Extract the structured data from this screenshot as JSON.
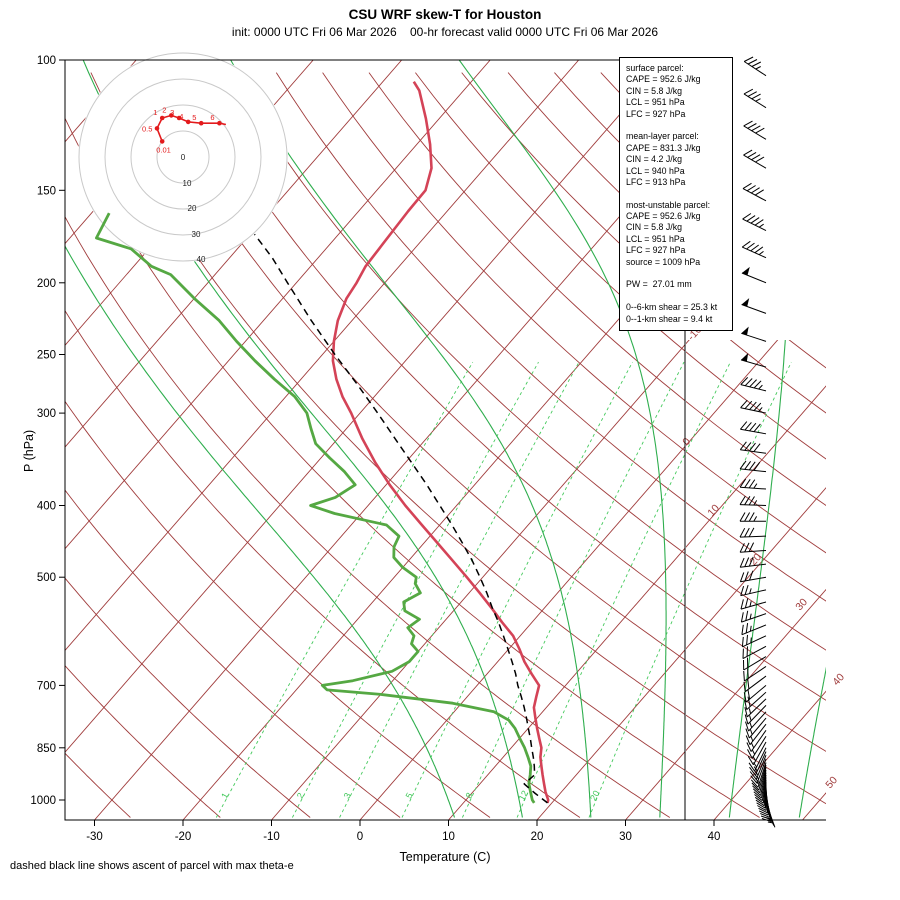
{
  "header": {
    "title": "CSU WRF skew-T for Houston",
    "subtitle": "init: 0000 UTC Fri 06 Mar 2026    00-hr forecast valid 0000 UTC Fri 06 Mar 2026"
  },
  "footnote": "dashed black line shows ascent of parcel with max theta-e",
  "axes": {
    "x_label": "Temperature (C)",
    "y_label": "P (hPa)",
    "x_ticks": [
      -30,
      -20,
      -10,
      0,
      10,
      20,
      30,
      40
    ],
    "y_ticks": [
      100,
      150,
      200,
      250,
      300,
      400,
      500,
      700,
      850,
      1000
    ]
  },
  "colors": {
    "isotherm": "#a03c3c",
    "dry_adiabat": "#a03c3c",
    "moist_adiabat": "#2fae4e",
    "mixing_ratio": "#44c95c",
    "temperature": "#d44357",
    "dewpoint": "#55a843",
    "parcel": "#000000",
    "barb": "#000000",
    "hodo_trace": "#e31a1c",
    "hodo_ring": "#c9c9c9"
  },
  "isotherm_labels": [
    "-10",
    "0",
    "10",
    "20",
    "30",
    "40",
    "50"
  ],
  "legend": {
    "lines": [
      "surface parcel:",
      "CAPE = 952.6 J/kg",
      "CIN = 5.8 J/kg",
      "LCL = 951 hPa",
      "LFC = 927 hPa",
      "",
      "mean-layer parcel:",
      "CAPE = 831.3 J/kg",
      "CIN = 4.2 J/kg",
      "LCL = 940 hPa",
      "LFC = 913 hPa",
      "",
      "most-unstable parcel:",
      "CAPE = 952.6 J/kg",
      "CIN = 5.8 J/kg",
      "LCL = 951 hPa",
      "LFC = 927 hPa",
      "source = 1009 hPa",
      "",
      "PW =  27.01 mm",
      "",
      "0--6-km shear = 25.3 kt",
      "0--1-km shear = 9.4 kt"
    ]
  },
  "hodograph": {
    "units": "kt",
    "ring_labels": [
      "0",
      "10",
      "20",
      "30",
      "40"
    ],
    "points": [
      {
        "label": "0.01",
        "u": -8,
        "v": 6
      },
      {
        "label": "0.5",
        "u": -10,
        "v": 11
      },
      {
        "label": "1",
        "u": -8,
        "v": 15
      },
      {
        "label": "2",
        "u": -4.5,
        "v": 16
      },
      {
        "label": "3",
        "u": -1.5,
        "v": 15
      },
      {
        "label": "4",
        "u": 2,
        "v": 13.5
      },
      {
        "label": "5",
        "u": 7,
        "v": 13
      },
      {
        "label": "6",
        "u": 14,
        "v": 13
      },
      {
        "label": "",
        "u": 16.5,
        "v": 12.5
      }
    ]
  },
  "chart_data": {
    "type": "line",
    "variant": "skew-T log-p sounding",
    "pressure_range": [
      100,
      1065
    ],
    "temperature_axis_range": [
      -30,
      40
    ],
    "isotherm_step": 10,
    "dry_adiabat_theta": {
      "min": -60,
      "max": 210,
      "step": 10
    },
    "moist_adiabats_thetaw": [
      8,
      16,
      24,
      32,
      40,
      48
    ],
    "mixing_ratio_lines": [
      1,
      2,
      3,
      5,
      8,
      12,
      20
    ],
    "temperature_profile": [
      [
        1009,
        19.5
      ],
      [
        1000,
        19.3
      ],
      [
        975,
        18.2
      ],
      [
        950,
        17.2
      ],
      [
        925,
        16.2
      ],
      [
        900,
        15.2
      ],
      [
        875,
        14.2
      ],
      [
        850,
        13.4
      ],
      [
        825,
        12.2
      ],
      [
        800,
        11.0
      ],
      [
        775,
        9.8
      ],
      [
        750,
        8.6
      ],
      [
        725,
        7.8
      ],
      [
        700,
        7.0
      ],
      [
        675,
        5.0
      ],
      [
        650,
        3.0
      ],
      [
        625,
        1.2
      ],
      [
        600,
        -0.8
      ],
      [
        575,
        -3.4
      ],
      [
        550,
        -6.0
      ],
      [
        525,
        -8.8
      ],
      [
        500,
        -11.8
      ],
      [
        475,
        -15.0
      ],
      [
        450,
        -18.4
      ],
      [
        425,
        -22.0
      ],
      [
        400,
        -25.8
      ],
      [
        375,
        -29.6
      ],
      [
        350,
        -33.4
      ],
      [
        325,
        -37.2
      ],
      [
        300,
        -41.0
      ],
      [
        285,
        -43.6
      ],
      [
        270,
        -46.0
      ],
      [
        255,
        -48.2
      ],
      [
        240,
        -50.0
      ],
      [
        225,
        -51.6
      ],
      [
        210,
        -52.8
      ],
      [
        200,
        -53.2
      ],
      [
        190,
        -53.8
      ],
      [
        180,
        -54.0
      ],
      [
        170,
        -54.2
      ],
      [
        160,
        -54.4
      ],
      [
        150,
        -54.5
      ],
      [
        140,
        -56.0
      ],
      [
        130,
        -58.5
      ],
      [
        120,
        -61.5
      ],
      [
        110,
        -65.0
      ],
      [
        107,
        -66.5
      ]
    ],
    "dewpoint_profile": [
      [
        1009,
        18.0
      ],
      [
        1000,
        17.5
      ],
      [
        975,
        16.5
      ],
      [
        950,
        15.5
      ],
      [
        925,
        14.8
      ],
      [
        900,
        14.0
      ],
      [
        875,
        12.8
      ],
      [
        850,
        11.5
      ],
      [
        825,
        10.0
      ],
      [
        800,
        8.5
      ],
      [
        780,
        7.0
      ],
      [
        760,
        4.5
      ],
      [
        740,
        -1.0
      ],
      [
        720,
        -10.0
      ],
      [
        710,
        -16.5
      ],
      [
        700,
        -17.5
      ],
      [
        690,
        -14.5
      ],
      [
        670,
        -11.0
      ],
      [
        650,
        -10.0
      ],
      [
        630,
        -10.0
      ],
      [
        615,
        -11.5
      ],
      [
        600,
        -12.0
      ],
      [
        585,
        -13.5
      ],
      [
        570,
        -13.0
      ],
      [
        555,
        -15.5
      ],
      [
        540,
        -16.5
      ],
      [
        525,
        -15.5
      ],
      [
        510,
        -17.0
      ],
      [
        500,
        -17.5
      ],
      [
        485,
        -20.0
      ],
      [
        470,
        -22.0
      ],
      [
        455,
        -23.0
      ],
      [
        440,
        -23.5
      ],
      [
        425,
        -26.0
      ],
      [
        410,
        -33.0
      ],
      [
        400,
        -36.5
      ],
      [
        390,
        -34.5
      ],
      [
        375,
        -33.5
      ],
      [
        360,
        -36.0
      ],
      [
        345,
        -39.0
      ],
      [
        330,
        -42.0
      ],
      [
        315,
        -44.0
      ],
      [
        300,
        -46.0
      ],
      [
        285,
        -49.0
      ],
      [
        270,
        -53.0
      ],
      [
        255,
        -57.0
      ],
      [
        240,
        -61.0
      ],
      [
        225,
        -65.0
      ],
      [
        210,
        -70.0
      ],
      [
        195,
        -75.0
      ],
      [
        190,
        -78.0
      ],
      [
        180,
        -82.0
      ],
      [
        174,
        -87.0
      ],
      [
        161,
        -88.0
      ]
    ],
    "parcel_profile": [
      [
        1009,
        19.5
      ],
      [
        980,
        17.2
      ],
      [
        951,
        15.0
      ],
      [
        925,
        15.3
      ],
      [
        900,
        14.4
      ],
      [
        875,
        13.4
      ],
      [
        850,
        12.3
      ],
      [
        825,
        11.2
      ],
      [
        800,
        10.0
      ],
      [
        775,
        8.8
      ],
      [
        750,
        7.5
      ],
      [
        725,
        6.1
      ],
      [
        700,
        4.6
      ],
      [
        675,
        3.2
      ],
      [
        650,
        1.6
      ],
      [
        625,
        -0.1
      ],
      [
        600,
        -1.9
      ],
      [
        575,
        -3.8
      ],
      [
        550,
        -5.9
      ],
      [
        525,
        -8.0
      ],
      [
        500,
        -10.3
      ],
      [
        475,
        -12.8
      ],
      [
        450,
        -15.6
      ],
      [
        425,
        -18.6
      ],
      [
        400,
        -21.9
      ],
      [
        375,
        -25.4
      ],
      [
        350,
        -29.3
      ],
      [
        325,
        -33.5
      ],
      [
        300,
        -38.0
      ],
      [
        275,
        -43.0
      ],
      [
        250,
        -48.6
      ],
      [
        225,
        -54.6
      ],
      [
        200,
        -61.0
      ],
      [
        185,
        -65.2
      ],
      [
        172,
        -69.5
      ]
    ],
    "winds": [
      [
        1009,
        160,
        6
      ],
      [
        1002,
        163,
        7
      ],
      [
        995,
        165,
        7
      ],
      [
        988,
        168,
        8
      ],
      [
        981,
        170,
        8
      ],
      [
        974,
        172,
        9
      ],
      [
        967,
        175,
        9
      ],
      [
        960,
        177,
        10
      ],
      [
        953,
        180,
        10
      ],
      [
        946,
        182,
        10
      ],
      [
        939,
        184,
        11
      ],
      [
        932,
        186,
        11
      ],
      [
        925,
        188,
        11
      ],
      [
        918,
        190,
        12
      ],
      [
        911,
        192,
        12
      ],
      [
        904,
        194,
        12
      ],
      [
        897,
        196,
        13
      ],
      [
        890,
        198,
        13
      ],
      [
        880,
        200,
        13
      ],
      [
        870,
        202,
        14
      ],
      [
        860,
        204,
        14
      ],
      [
        850,
        206,
        14
      ],
      [
        835,
        209,
        15
      ],
      [
        820,
        212,
        15
      ],
      [
        805,
        215,
        15
      ],
      [
        790,
        218,
        16
      ],
      [
        775,
        220,
        16
      ],
      [
        760,
        222,
        16
      ],
      [
        745,
        224,
        17
      ],
      [
        730,
        226,
        17
      ],
      [
        715,
        228,
        18
      ],
      [
        700,
        230,
        18
      ],
      [
        680,
        233,
        19
      ],
      [
        660,
        236,
        20
      ],
      [
        640,
        239,
        21
      ],
      [
        620,
        242,
        22
      ],
      [
        600,
        245,
        23
      ],
      [
        580,
        248,
        24
      ],
      [
        560,
        251,
        25
      ],
      [
        540,
        254,
        26
      ],
      [
        520,
        257,
        27
      ],
      [
        500,
        260,
        28
      ],
      [
        480,
        263,
        29
      ],
      [
        460,
        266,
        30
      ],
      [
        440,
        268,
        32
      ],
      [
        420,
        270,
        33
      ],
      [
        400,
        272,
        35
      ],
      [
        380,
        274,
        37
      ],
      [
        360,
        276,
        38
      ],
      [
        340,
        278,
        40
      ],
      [
        320,
        280,
        42
      ],
      [
        300,
        282,
        44
      ],
      [
        280,
        284,
        46
      ],
      [
        260,
        286,
        48
      ],
      [
        240,
        288,
        50
      ],
      [
        220,
        290,
        50
      ],
      [
        200,
        292,
        48
      ],
      [
        185,
        294,
        46
      ],
      [
        170,
        296,
        44
      ],
      [
        155,
        298,
        42
      ],
      [
        140,
        300,
        40
      ],
      [
        128,
        301,
        38
      ],
      [
        116,
        302,
        36
      ],
      [
        105,
        303,
        34
      ]
    ]
  }
}
